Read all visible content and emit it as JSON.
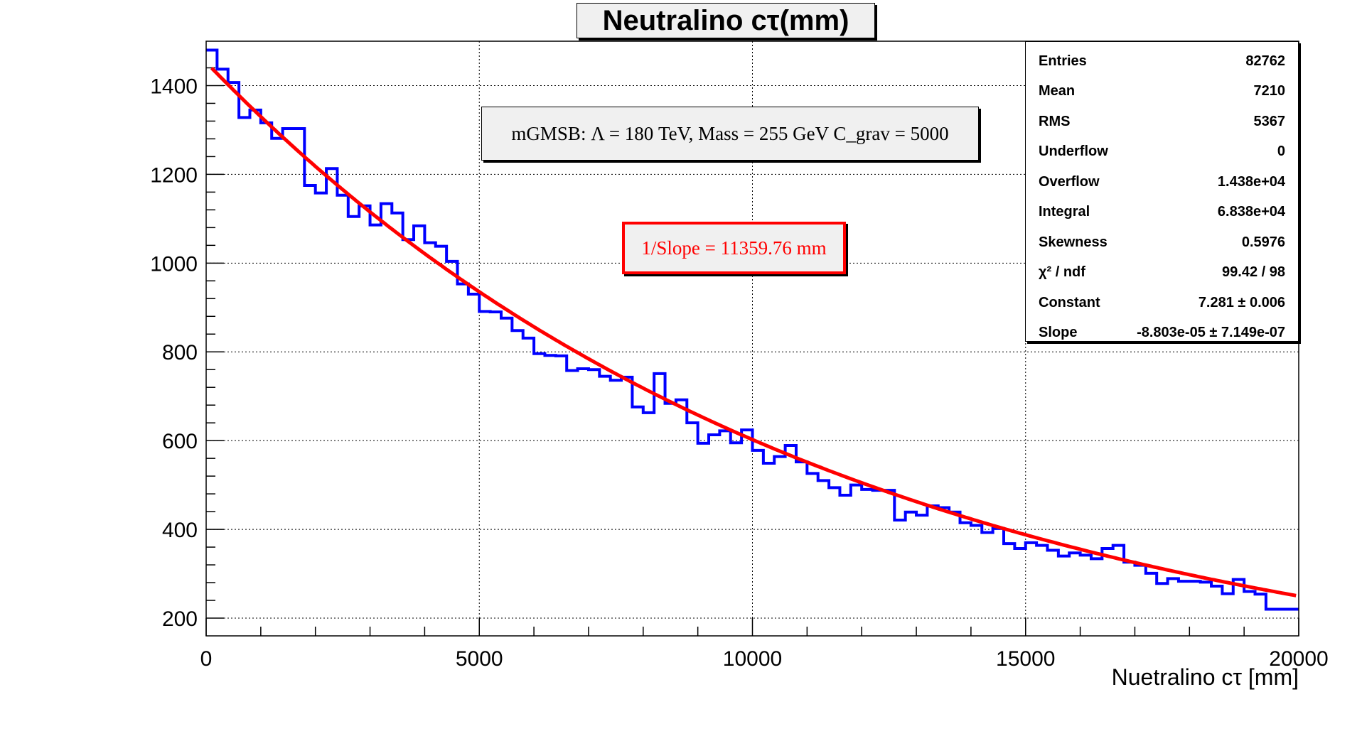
{
  "chart_data": {
    "type": "histogram",
    "title": "Neutralino cτ(mm)",
    "xlabel": "Nuetralino cτ [mm]",
    "ylabel": "",
    "xlim": [
      0,
      20000
    ],
    "ylim": [
      160,
      1500
    ],
    "xticks": [
      0,
      5000,
      10000,
      15000,
      20000
    ],
    "yticks": [
      200,
      400,
      600,
      800,
      1000,
      1200,
      1400
    ],
    "grid": true,
    "bin_width": 200,
    "bin_start": 0,
    "histogram_color": "#0000ff",
    "fit_color": "#ff0000",
    "values": [
      1480,
      1437,
      1407,
      1328,
      1345,
      1316,
      1281,
      1303,
      1303,
      1175,
      1158,
      1213,
      1153,
      1105,
      1129,
      1086,
      1134,
      1113,
      1053,
      1084,
      1046,
      1038,
      1004,
      953,
      930,
      891,
      890,
      876,
      848,
      831,
      796,
      792,
      791,
      758,
      762,
      760,
      745,
      736,
      743,
      676,
      663,
      751,
      684,
      692,
      640,
      594,
      613,
      622,
      595,
      624,
      578,
      549,
      564,
      589,
      552,
      526,
      510,
      494,
      477,
      500,
      490,
      488,
      488,
      421,
      439,
      432,
      453,
      449,
      439,
      415,
      409,
      393,
      402,
      368,
      357,
      370,
      364,
      353,
      340,
      347,
      342,
      334,
      357,
      364,
      326,
      319,
      301,
      278,
      289,
      283,
      283,
      281,
      272,
      255,
      287,
      260,
      254,
      220,
      220,
      220
    ],
    "fit": {
      "function": "exponential",
      "constant": 7.281,
      "slope": -8.803e-05,
      "x_range": [
        100,
        19950
      ]
    },
    "stats": [
      {
        "label": "Entries",
        "value": "82762"
      },
      {
        "label": "Mean",
        "value": "7210"
      },
      {
        "label": "RMS",
        "value": "5367"
      },
      {
        "label": "Underflow",
        "value": "0"
      },
      {
        "label": "Overflow",
        "value": "1.438e+04"
      },
      {
        "label": "Integral",
        "value": "6.838e+04"
      },
      {
        "label": "Skewness",
        "value": "0.5976"
      },
      {
        "label": "χ² / ndf",
        "value": "99.42 / 98"
      },
      {
        "label": "Constant",
        "value": "7.281 ± 0.006"
      },
      {
        "label": "Slope",
        "value": "-8.803e-05 ± 7.149e-07"
      }
    ],
    "annotations": [
      "mGMSB: Λ = 180 TeV, Mass = 255 GeV C_grav = 5000",
      "1/Slope = 11359.76 mm"
    ]
  }
}
